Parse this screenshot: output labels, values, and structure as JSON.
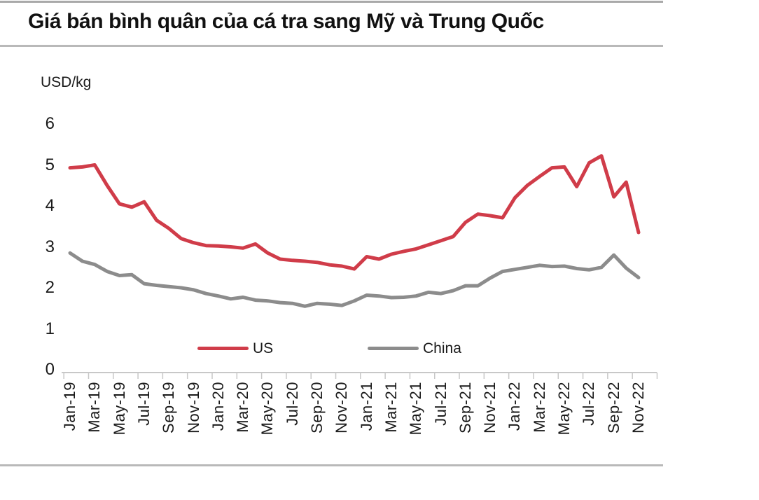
{
  "chart_data": {
    "type": "line",
    "title": "Giá bán bình quân của cá tra sang Mỹ và Trung Quốc",
    "ylabel": "USD/kg",
    "ylim": [
      0,
      6
    ],
    "yticks": [
      0,
      1,
      2,
      3,
      4,
      5,
      6
    ],
    "grid": false,
    "legend_position": "bottom-center",
    "x_tick_every": 2,
    "x": [
      "Jan-19",
      "Feb-19",
      "Mar-19",
      "Apr-19",
      "May-19",
      "Jun-19",
      "Jul-19",
      "Aug-19",
      "Sep-19",
      "Oct-19",
      "Nov-19",
      "Dec-19",
      "Jan-20",
      "Feb-20",
      "Mar-20",
      "Apr-20",
      "May-20",
      "Jun-20",
      "Jul-20",
      "Aug-20",
      "Sep-20",
      "Oct-20",
      "Nov-20",
      "Dec-20",
      "Jan-21",
      "Feb-21",
      "Mar-21",
      "Apr-21",
      "May-21",
      "Jun-21",
      "Jul-21",
      "Aug-21",
      "Sep-21",
      "Oct-21",
      "Nov-21",
      "Dec-21",
      "Jan-22",
      "Feb-22",
      "Mar-22",
      "Apr-22",
      "May-22",
      "Jun-22",
      "Jul-22",
      "Aug-22",
      "Sep-22",
      "Oct-22",
      "Nov-22"
    ],
    "series": [
      {
        "name": "US",
        "color": "#D03C49",
        "values": [
          4.93,
          4.95,
          5.0,
          4.5,
          4.05,
          3.97,
          4.1,
          3.65,
          3.45,
          3.2,
          3.1,
          3.03,
          3.02,
          3.0,
          2.97,
          3.07,
          2.85,
          2.7,
          2.67,
          2.65,
          2.62,
          2.56,
          2.53,
          2.46,
          2.76,
          2.7,
          2.82,
          2.89,
          2.95,
          3.05,
          3.15,
          3.25,
          3.6,
          3.8,
          3.76,
          3.71,
          4.2,
          4.5,
          4.72,
          4.93,
          4.95,
          4.47,
          5.05,
          5.22,
          4.22,
          4.58,
          3.35
        ]
      },
      {
        "name": "China",
        "color": "#8C8C8C",
        "values": [
          2.85,
          2.65,
          2.57,
          2.4,
          2.3,
          2.32,
          2.1,
          2.06,
          2.03,
          2.0,
          1.95,
          1.86,
          1.8,
          1.73,
          1.77,
          1.7,
          1.68,
          1.64,
          1.62,
          1.55,
          1.62,
          1.6,
          1.57,
          1.68,
          1.82,
          1.8,
          1.76,
          1.77,
          1.8,
          1.89,
          1.86,
          1.93,
          2.05,
          2.05,
          2.24,
          2.4,
          2.45,
          2.5,
          2.55,
          2.52,
          2.53,
          2.47,
          2.44,
          2.5,
          2.8,
          2.48,
          2.25
        ]
      }
    ]
  },
  "colors": {
    "axis": "#c8c8c8",
    "divider": "#b9b9b9",
    "text": "#1a1a1a"
  }
}
